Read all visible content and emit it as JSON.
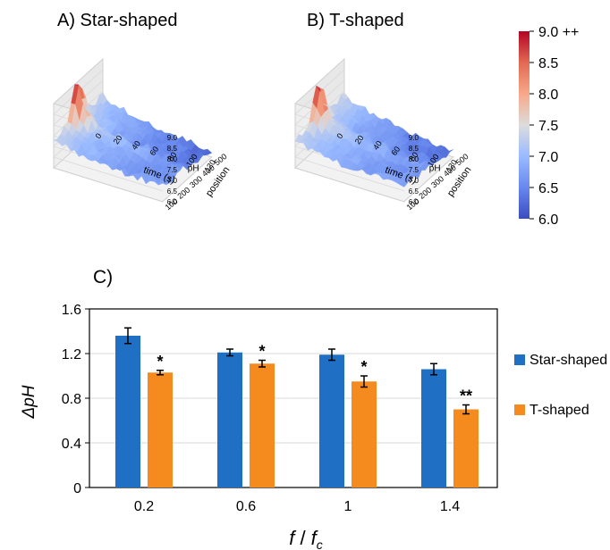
{
  "panels": {
    "a_title": "A)  Star-shaped",
    "b_title": "B) T-shaped",
    "c_title": "C)"
  },
  "surface_axes": {
    "time_label": "time (s)",
    "position_label": "position",
    "ph_label": "pH",
    "time_ticks": [
      "0",
      "20",
      "40",
      "60",
      "80",
      "100",
      "120"
    ],
    "position_ticks": [
      "100",
      "200",
      "300",
      "400",
      "500"
    ],
    "ph_ticks": [
      "6.0",
      "6.5",
      "7.0",
      "7.5",
      "8.0",
      "8.5",
      "9.0"
    ]
  },
  "colorbar": {
    "ticks": [
      "6.0",
      "6.5",
      "7.0",
      "7.5",
      "8.0",
      "8.5",
      "9.0 ++"
    ],
    "values": [
      6.0,
      6.5,
      7.0,
      7.5,
      8.0,
      8.5,
      9.0
    ],
    "colors": [
      "#3b4cc0",
      "#6788ee",
      "#9abbff",
      "#dddcdc",
      "#f7a889",
      "#e26952",
      "#b40426"
    ]
  },
  "chart_data": {
    "type": "bar",
    "categories": [
      "0.2",
      "0.6",
      "1",
      "1.4"
    ],
    "series": [
      {
        "name": "Star-shaped",
        "color": "#1f6fc5",
        "values": [
          1.36,
          1.21,
          1.19,
          1.06
        ],
        "errors": [
          0.07,
          0.03,
          0.05,
          0.05
        ],
        "marks": [
          "",
          "",
          "",
          ""
        ]
      },
      {
        "name": "T-shaped",
        "color": "#f58a1f",
        "values": [
          1.03,
          1.11,
          0.95,
          0.7
        ],
        "errors": [
          0.02,
          0.03,
          0.05,
          0.04
        ],
        "marks": [
          "*",
          "*",
          "*",
          "**"
        ]
      }
    ],
    "ylim": [
      0,
      1.6
    ],
    "yticks": [
      "0",
      "0.4",
      "0.8",
      "1.2",
      "1.6"
    ],
    "ytick_values": [
      0,
      0.4,
      0.8,
      1.2,
      1.6
    ],
    "ylabel": "ΔpH",
    "xlabel_main": "f",
    "xlabel_sep": " / ",
    "xlabel_sub_main": "f",
    "xlabel_sub": "c",
    "legend_position": "right",
    "grid": "horizontal"
  }
}
